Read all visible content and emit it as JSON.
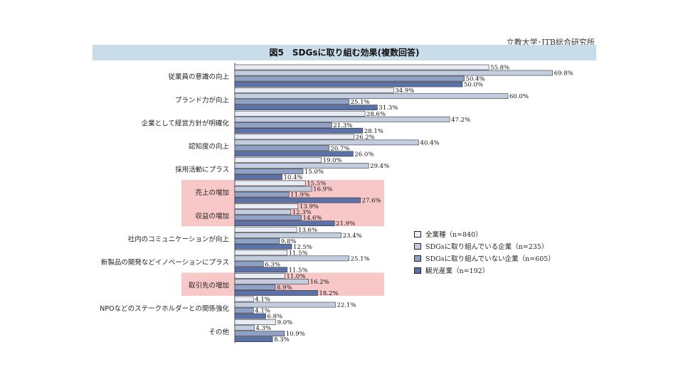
{
  "source": "立教大学･JTB総合研究所",
  "chart_data": {
    "type": "bar",
    "orientation": "horizontal",
    "title": "図5　SDGsに取り組む効果(複数回答)",
    "categories": [
      "従業員の意識の向上",
      "ブランド力が向上",
      "企業として経営方針が明確化",
      "認知度の向上",
      "採用活動にプラス",
      "売上の増加",
      "収益の増加",
      "社内のコミュニケーションが向上",
      "新製品の開発などイノベーションにプラス",
      "取引先の増加",
      "NPOなどのステークホルダーとの関係強化",
      "その他"
    ],
    "highlighted_categories": [
      "売上の増加",
      "収益の増加",
      "取引先の増加"
    ],
    "highlight_color": "#f8c8c8",
    "series": [
      {
        "name": "全業種（n=840）",
        "color": "#e8ecf4",
        "values": [
          55.8,
          34.9,
          28.6,
          26.2,
          19.0,
          15.5,
          13.9,
          13.6,
          11.5,
          11.0,
          4.1,
          9.0
        ]
      },
      {
        "name": "SDGsに取り組んでいる企業（n=235）",
        "color": "#c3cde0",
        "values": [
          69.8,
          60.0,
          47.2,
          40.4,
          29.4,
          16.9,
          12.3,
          23.4,
          25.1,
          16.2,
          22.1,
          4.3
        ]
      },
      {
        "name": "SDGsに取り組んでいない企業（n=605）",
        "color": "#8fa1c6",
        "values": [
          50.4,
          25.1,
          21.3,
          20.7,
          15.0,
          11.9,
          14.6,
          9.8,
          6.3,
          8.9,
          4.1,
          10.9
        ]
      },
      {
        "name": "観光産業（n=192）",
        "color": "#5a72a8",
        "values": [
          50.0,
          31.3,
          28.1,
          26.0,
          10.4,
          27.6,
          21.9,
          12.5,
          11.5,
          18.2,
          6.8,
          8.3
        ]
      }
    ],
    "value_format": "%",
    "xlim": [
      0,
      80
    ],
    "grid": false,
    "legend_position": "right"
  }
}
